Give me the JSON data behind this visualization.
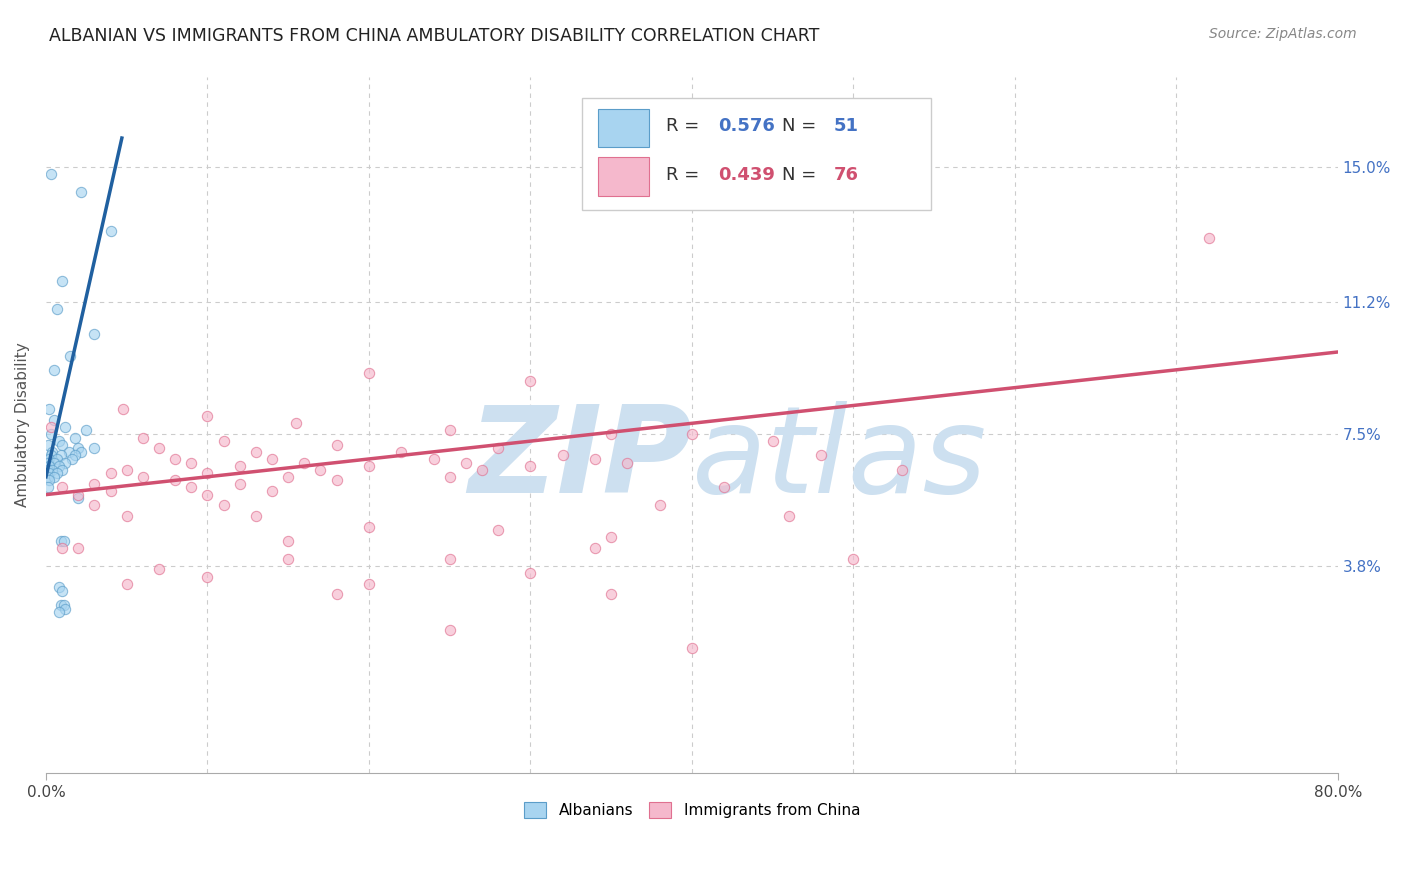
{
  "title": "ALBANIAN VS IMMIGRANTS FROM CHINA AMBULATORY DISABILITY CORRELATION CHART",
  "source": "Source: ZipAtlas.com",
  "ylabel": "Ambulatory Disability",
  "xlim": [
    0.0,
    0.8
  ],
  "ylim": [
    -0.02,
    0.175
  ],
  "ytick_vals": [
    0.038,
    0.075,
    0.112,
    0.15
  ],
  "ytick_labels": [
    "3.8%",
    "7.5%",
    "11.2%",
    "15.0%"
  ],
  "albanian_color_fill": "#a8d4f0",
  "albanian_color_edge": "#5b9dc9",
  "china_color_fill": "#f5b8cc",
  "china_color_edge": "#e07090",
  "albanian_line_color": "#2060a0",
  "china_line_color": "#d05070",
  "albanian_line_x": [
    0.0,
    0.047
  ],
  "albanian_line_y": [
    0.063,
    0.158
  ],
  "china_line_x": [
    0.0,
    0.8
  ],
  "china_line_y": [
    0.058,
    0.098
  ],
  "scatter_alpha": 0.65,
  "scatter_size": 55,
  "background_color": "#ffffff",
  "grid_color": "#cccccc",
  "watermark_color": "#cde0f0",
  "title_fontsize": 12.5,
  "source_fontsize": 10,
  "label_fontsize": 11,
  "tick_fontsize": 11,
  "legend_fontsize": 13,
  "albanian_R": "0.576",
  "albanian_N": "51",
  "china_R": "0.439",
  "china_N": "76",
  "albanian_scatter": [
    [
      0.003,
      0.148
    ],
    [
      0.022,
      0.143
    ],
    [
      0.04,
      0.132
    ],
    [
      0.01,
      0.118
    ],
    [
      0.007,
      0.11
    ],
    [
      0.03,
      0.103
    ],
    [
      0.015,
      0.097
    ],
    [
      0.005,
      0.093
    ],
    [
      0.002,
      0.082
    ],
    [
      0.005,
      0.079
    ],
    [
      0.012,
      0.077
    ],
    [
      0.025,
      0.076
    ],
    [
      0.003,
      0.075
    ],
    [
      0.018,
      0.074
    ],
    [
      0.008,
      0.073
    ],
    [
      0.001,
      0.072
    ],
    [
      0.01,
      0.072
    ],
    [
      0.02,
      0.071
    ],
    [
      0.03,
      0.071
    ],
    [
      0.004,
      0.07
    ],
    [
      0.014,
      0.07
    ],
    [
      0.022,
      0.07
    ],
    [
      0.003,
      0.069
    ],
    [
      0.009,
      0.069
    ],
    [
      0.018,
      0.069
    ],
    [
      0.002,
      0.068
    ],
    [
      0.007,
      0.068
    ],
    [
      0.016,
      0.068
    ],
    [
      0.001,
      0.067
    ],
    [
      0.005,
      0.067
    ],
    [
      0.012,
      0.067
    ],
    [
      0.002,
      0.066
    ],
    [
      0.008,
      0.066
    ],
    [
      0.001,
      0.065
    ],
    [
      0.004,
      0.065
    ],
    [
      0.01,
      0.065
    ],
    [
      0.002,
      0.064
    ],
    [
      0.007,
      0.064
    ],
    [
      0.001,
      0.063
    ],
    [
      0.005,
      0.063
    ],
    [
      0.002,
      0.062
    ],
    [
      0.001,
      0.06
    ],
    [
      0.02,
      0.057
    ],
    [
      0.009,
      0.045
    ],
    [
      0.011,
      0.045
    ],
    [
      0.008,
      0.032
    ],
    [
      0.01,
      0.031
    ],
    [
      0.009,
      0.027
    ],
    [
      0.011,
      0.027
    ],
    [
      0.012,
      0.026
    ],
    [
      0.008,
      0.025
    ]
  ],
  "china_scatter": [
    [
      0.72,
      0.13
    ],
    [
      0.003,
      0.077
    ],
    [
      0.2,
      0.092
    ],
    [
      0.3,
      0.09
    ],
    [
      0.048,
      0.082
    ],
    [
      0.1,
      0.08
    ],
    [
      0.155,
      0.078
    ],
    [
      0.25,
      0.076
    ],
    [
      0.35,
      0.075
    ],
    [
      0.06,
      0.074
    ],
    [
      0.11,
      0.073
    ],
    [
      0.18,
      0.072
    ],
    [
      0.28,
      0.071
    ],
    [
      0.07,
      0.071
    ],
    [
      0.13,
      0.07
    ],
    [
      0.22,
      0.07
    ],
    [
      0.32,
      0.069
    ],
    [
      0.4,
      0.075
    ],
    [
      0.45,
      0.073
    ],
    [
      0.08,
      0.068
    ],
    [
      0.14,
      0.068
    ],
    [
      0.24,
      0.068
    ],
    [
      0.34,
      0.068
    ],
    [
      0.09,
      0.067
    ],
    [
      0.16,
      0.067
    ],
    [
      0.26,
      0.067
    ],
    [
      0.36,
      0.067
    ],
    [
      0.12,
      0.066
    ],
    [
      0.2,
      0.066
    ],
    [
      0.3,
      0.066
    ],
    [
      0.05,
      0.065
    ],
    [
      0.17,
      0.065
    ],
    [
      0.27,
      0.065
    ],
    [
      0.04,
      0.064
    ],
    [
      0.1,
      0.064
    ],
    [
      0.06,
      0.063
    ],
    [
      0.15,
      0.063
    ],
    [
      0.25,
      0.063
    ],
    [
      0.08,
      0.062
    ],
    [
      0.18,
      0.062
    ],
    [
      0.03,
      0.061
    ],
    [
      0.12,
      0.061
    ],
    [
      0.01,
      0.06
    ],
    [
      0.09,
      0.06
    ],
    [
      0.04,
      0.059
    ],
    [
      0.14,
      0.059
    ],
    [
      0.02,
      0.058
    ],
    [
      0.1,
      0.058
    ],
    [
      0.03,
      0.055
    ],
    [
      0.11,
      0.055
    ],
    [
      0.05,
      0.052
    ],
    [
      0.13,
      0.052
    ],
    [
      0.2,
      0.049
    ],
    [
      0.35,
      0.046
    ],
    [
      0.48,
      0.069
    ],
    [
      0.53,
      0.065
    ],
    [
      0.01,
      0.043
    ],
    [
      0.02,
      0.043
    ],
    [
      0.15,
      0.04
    ],
    [
      0.25,
      0.04
    ],
    [
      0.07,
      0.037
    ],
    [
      0.3,
      0.036
    ],
    [
      0.1,
      0.035
    ],
    [
      0.05,
      0.033
    ],
    [
      0.2,
      0.033
    ],
    [
      0.18,
      0.03
    ],
    [
      0.35,
      0.03
    ],
    [
      0.25,
      0.02
    ],
    [
      0.4,
      0.015
    ],
    [
      0.15,
      0.045
    ],
    [
      0.42,
      0.06
    ],
    [
      0.38,
      0.055
    ],
    [
      0.28,
      0.048
    ],
    [
      0.46,
      0.052
    ],
    [
      0.34,
      0.043
    ],
    [
      0.5,
      0.04
    ]
  ]
}
